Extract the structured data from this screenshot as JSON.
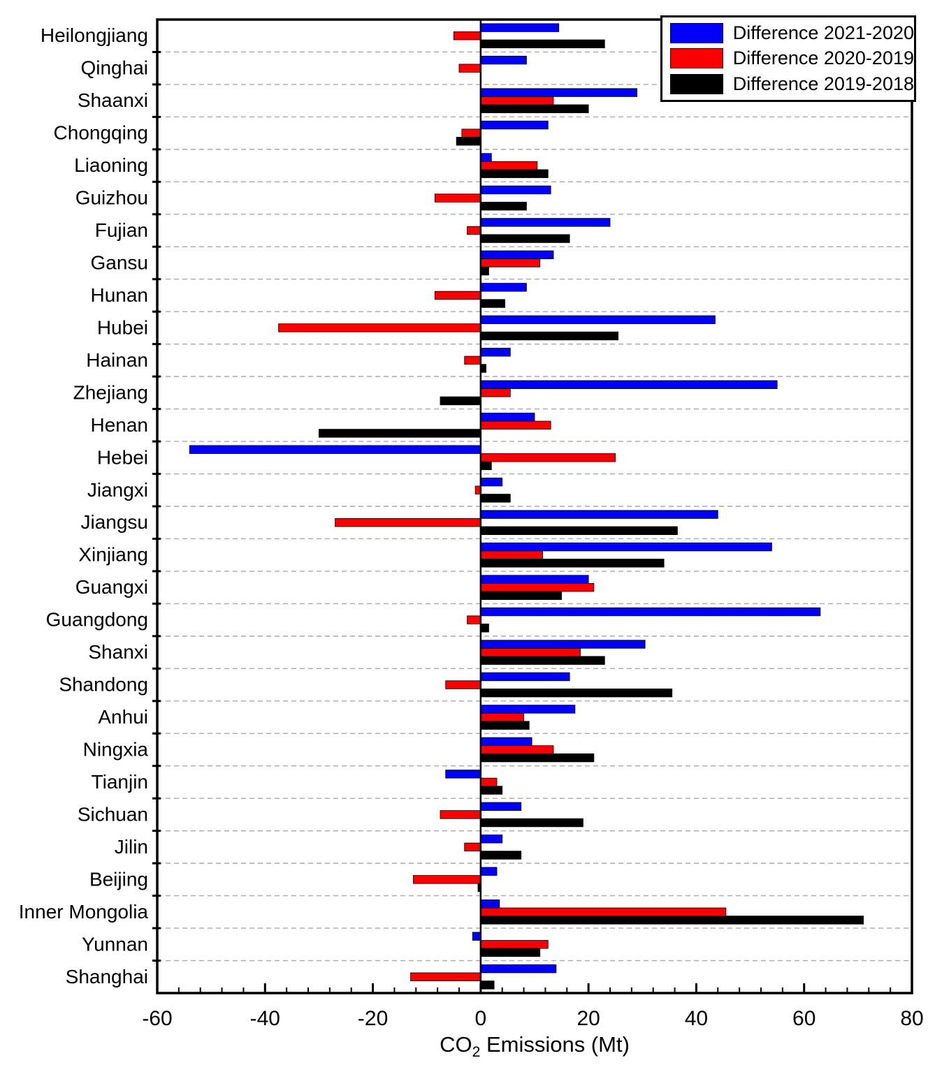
{
  "chart_data": {
    "type": "bar",
    "orientation": "horizontal",
    "title": "",
    "xlabel": "CO2 Emissions (Mt)",
    "xlabel_parts": {
      "prefix": "CO",
      "sub": "2",
      "suffix": " Emissions (Mt)"
    },
    "ylabel": "",
    "xlim": [
      -60,
      80
    ],
    "x_major_ticks": [
      -60,
      -40,
      -20,
      0,
      20,
      40,
      60,
      80
    ],
    "x_tick_labels": [
      "-60",
      "-40",
      "-20",
      "0",
      "20",
      "40",
      "60",
      "80"
    ],
    "x_minor_step": 4,
    "grid": "horizontal-dashed",
    "legend_position": "top-right",
    "categories": [
      "Heilongjiang",
      "Qinghai",
      "Shaanxi",
      "Chongqing",
      "Liaoning",
      "Guizhou",
      "Fujian",
      "Gansu",
      "Hunan",
      "Hubei",
      "Hainan",
      "Zhejiang",
      "Henan",
      "Hebei",
      "Jiangxi",
      "Jiangsu",
      "Xinjiang",
      "Guangxi",
      "Guangdong",
      "Shanxi",
      "Shandong",
      "Anhui",
      "Ningxia",
      "Tianjin",
      "Sichuan",
      "Jilin",
      "Beijing",
      "Inner Mongolia",
      "Yunnan",
      "Shanghai"
    ],
    "series": [
      {
        "name": "Difference 2021-2020",
        "color": "#0000fa",
        "values": [
          14.5,
          8.5,
          29,
          12.5,
          2,
          13,
          24,
          13.5,
          8.5,
          43.5,
          5.5,
          55,
          10,
          -54,
          4,
          44,
          54,
          20,
          63,
          30.5,
          16.5,
          17.5,
          9.5,
          -6.5,
          7.5,
          4,
          3,
          3.5,
          -1.5,
          14
        ]
      },
      {
        "name": "Difference 2020-2019",
        "color": "#fb0000",
        "values": [
          -5,
          -4,
          13.5,
          -3.5,
          10.5,
          -8.5,
          -2.5,
          11,
          -8.5,
          -37.5,
          -3,
          5.5,
          13,
          25,
          -1,
          -27,
          11.5,
          21,
          -2.5,
          18.5,
          -6.5,
          8,
          13.5,
          3,
          -7.5,
          -3,
          -12.5,
          45.5,
          12.5,
          -13
        ]
      },
      {
        "name": "Difference 2019-2018",
        "color": "#000000",
        "values": [
          23,
          0,
          20,
          -4.5,
          12.5,
          8.5,
          16.5,
          1.5,
          4.5,
          25.5,
          1,
          -7.5,
          -30,
          2,
          5.5,
          36.5,
          34,
          15,
          1.5,
          23,
          35.5,
          9,
          21,
          4,
          19,
          7.5,
          -0.5,
          71,
          11,
          2.5
        ]
      }
    ],
    "axis_color": "#000000",
    "gridline_color": "#a8a8a8"
  }
}
